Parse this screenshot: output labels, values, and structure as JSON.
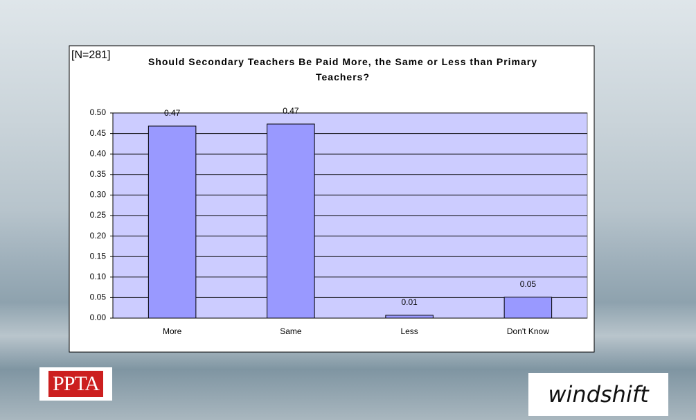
{
  "chart_data": {
    "type": "bar",
    "title": "Should Secondary Teachers Be Paid More, the Same or Less than Primary Teachers?",
    "annotation": "[N=281]",
    "categories": [
      "More",
      "Same",
      "Less",
      "Don't Know"
    ],
    "values": [
      0.468,
      0.473,
      0.007,
      0.051
    ],
    "value_labels": [
      "0.47",
      "0.47",
      "0.01",
      "0.05"
    ],
    "color": "#9999ff",
    "plot_background": "#ccccff",
    "ylim": [
      0,
      0.5
    ],
    "yticks": [
      {
        "value": 0,
        "label": "0.00"
      },
      {
        "value": 0.05,
        "label": "0.05"
      },
      {
        "value": 0.1,
        "label": "0.10"
      },
      {
        "value": 0.15,
        "label": "0.15"
      },
      {
        "value": 0.2,
        "label": "0.20"
      },
      {
        "value": 0.25,
        "label": "0.25"
      },
      {
        "value": 0.3,
        "label": "0.30"
      },
      {
        "value": 0.35,
        "label": "0.35"
      },
      {
        "value": 0.4,
        "label": "0.40"
      },
      {
        "value": 0.45,
        "label": "0.45"
      },
      {
        "value": 0.5,
        "label": "0.50"
      }
    ],
    "grid": true
  },
  "logos": [
    "PPTA",
    "windshift"
  ]
}
